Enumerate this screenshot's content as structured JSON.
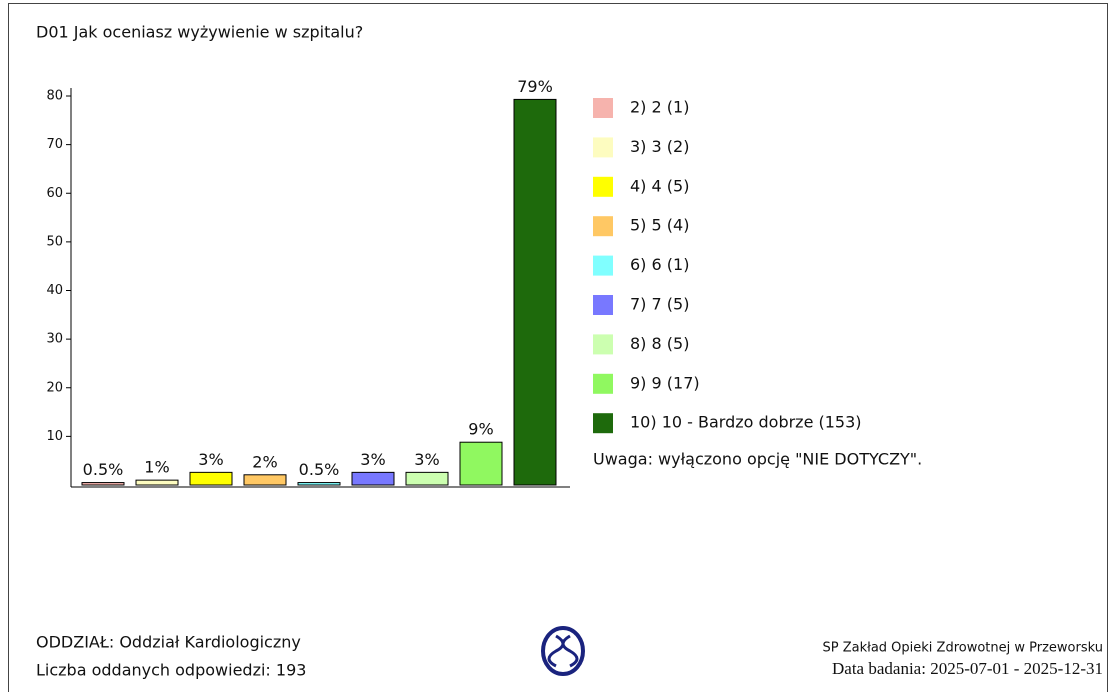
{
  "chart_data": {
    "type": "bar",
    "title": "D01 Jak oceniasz wyżywienie w szpitalu?",
    "categories": [
      "2) 2 (1)",
      "3) 3 (2)",
      "4) 4 (5)",
      "5) 5 (4)",
      "6) 6 (1)",
      "7) 7 (5)",
      "8) 8 (5)",
      "9) 9 (17)",
      "10) 10 - Bardzo dobrze (153)"
    ],
    "values": [
      0.5,
      1,
      2.6,
      2.1,
      0.5,
      2.6,
      2.6,
      8.8,
      79.3
    ],
    "value_labels": [
      "0.5%",
      "1%",
      "3%",
      "2%",
      "0.5%",
      "3%",
      "3%",
      "9%",
      "79%"
    ],
    "colors": [
      "#f6b3ad",
      "#fdfcc0",
      "#ffff00",
      "#ffc864",
      "#80ffff",
      "#7878ff",
      "#ccffb0",
      "#90f860",
      "#1e6a0c"
    ],
    "ylim": [
      0,
      80
    ],
    "yticks": [
      10,
      20,
      30,
      40,
      50,
      60,
      70,
      80
    ],
    "grid": false,
    "note": "Uwaga: wyłączono opcję \"NIE DOTYCZY\".",
    "footer": {
      "department": "ODDZIAŁ: Oddział Kardiologiczny",
      "responses": "Liczba oddanych odpowiedzi: 193",
      "institution": "SP Zakład Opieki Zdrowotnej w Przeworsku",
      "date": "Data badania: 2025-07-01 - 2025-12-31"
    }
  }
}
